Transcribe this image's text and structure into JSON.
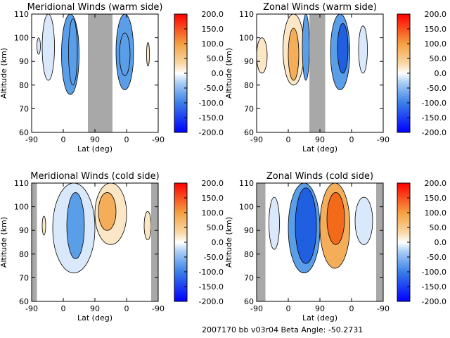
{
  "footer": "2007170 bb v03r04   Beta Angle: -50.2731",
  "colorbar_ticks": [
    "200.0",
    "150.0",
    "100.0",
    "50.0",
    "0.0",
    "-50.0",
    "-100.0",
    "-150.0",
    "-200.0"
  ],
  "colors": {
    "gray_band": "#a8a8a8",
    "negative_light": "#d9e9fb",
    "negative_mid": "#5a9ee8",
    "negative_strong": "#1f5fe0",
    "positive_light": "#fbe6c6",
    "positive_mid": "#f4ae5a",
    "positive_strong": "#f26a1a"
  },
  "chart_data": [
    {
      "type": "heatmap",
      "title": "Meridional Winds (warm side)",
      "xlabel": "Lat (deg)",
      "ylabel": "Altitude (km)",
      "xticks": [
        "-90",
        "0",
        "90",
        "0",
        "-90"
      ],
      "yticks": [
        "60",
        "70",
        "80",
        "90",
        "100",
        "110"
      ],
      "ylim": [
        60,
        110
      ],
      "colorbar_range": [
        -200,
        200
      ],
      "no_data_bands_deg": [
        [
          70,
          140
        ]
      ],
      "features": [
        {
          "x": [
            -60,
            -25
          ],
          "y": [
            82,
            110
          ],
          "level": -25
        },
        {
          "x": [
            -5,
            45
          ],
          "y": [
            76,
            110
          ],
          "level": -75
        },
        {
          "x": [
            15,
            40
          ],
          "y": [
            80,
            108
          ],
          "level": -120
        },
        {
          "x": [
            150,
            200
          ],
          "y": [
            78,
            110
          ],
          "level": -70
        },
        {
          "x": [
            160,
            190
          ],
          "y": [
            84,
            102
          ],
          "level": -120
        },
        {
          "x": [
            238,
            244
          ],
          "y": [
            88,
            98
          ],
          "level": 30
        },
        {
          "x": [
            -75,
            -65
          ],
          "y": [
            93,
            100
          ],
          "level": -30
        }
      ]
    },
    {
      "type": "heatmap",
      "title": "Zonal Winds (warm side)",
      "xlabel": "Lat (deg)",
      "ylabel": "Altitude (km)",
      "xticks": [
        "-90",
        "0",
        "90",
        "0",
        "-90"
      ],
      "yticks": [
        "60",
        "70",
        "80",
        "90",
        "100",
        "110"
      ],
      "ylim": [
        60,
        110
      ],
      "colorbar_range": [
        -200,
        200
      ],
      "no_data_bands_deg": [
        [
          60,
          105
        ]
      ],
      "features": [
        {
          "x": [
            -90,
            -60
          ],
          "y": [
            85,
            100
          ],
          "level": 30
        },
        {
          "x": [
            -15,
            45
          ],
          "y": [
            80,
            110
          ],
          "level": 40
        },
        {
          "x": [
            0,
            30
          ],
          "y": [
            82,
            104
          ],
          "level": 90
        },
        {
          "x": [
            40,
            60
          ],
          "y": [
            82,
            110
          ],
          "level": -80
        },
        {
          "x": [
            120,
            175
          ],
          "y": [
            78,
            110
          ],
          "level": -100
        },
        {
          "x": [
            140,
            170
          ],
          "y": [
            85,
            106
          ],
          "level": -140
        },
        {
          "x": [
            200,
            225
          ],
          "y": [
            85,
            105
          ],
          "level": -25
        }
      ]
    },
    {
      "type": "heatmap",
      "title": "Meridional Winds (cold side)",
      "xlabel": "Lat (deg)",
      "ylabel": "Altitude (km)",
      "xticks": [
        "-90",
        "0",
        "90",
        "0",
        "-90"
      ],
      "yticks": [
        "60",
        "70",
        "80",
        "90",
        "100",
        "110"
      ],
      "ylim": [
        60,
        110
      ],
      "colorbar_range": [
        -200,
        200
      ],
      "no_data_bands_deg": [
        [
          -90,
          -75
        ],
        [
          250,
          270
        ]
      ],
      "features": [
        {
          "x": [
            -30,
            90
          ],
          "y": [
            72,
            110
          ],
          "level": -40
        },
        {
          "x": [
            10,
            60
          ],
          "y": [
            78,
            106
          ],
          "level": -90
        },
        {
          "x": [
            90,
            180
          ],
          "y": [
            84,
            110
          ],
          "level": 40
        },
        {
          "x": [
            100,
            150
          ],
          "y": [
            90,
            106
          ],
          "level": 70
        },
        {
          "x": [
            -60,
            -50
          ],
          "y": [
            88,
            96
          ],
          "level": 25
        },
        {
          "x": [
            230,
            250
          ],
          "y": [
            86,
            98
          ],
          "level": 50
        }
      ]
    },
    {
      "type": "heatmap",
      "title": "Zonal Winds (cold side)",
      "xlabel": "Lat (deg)",
      "ylabel": "Altitude (km)",
      "xticks": [
        "-90",
        "0",
        "90",
        "0",
        "-90"
      ],
      "yticks": [
        "60",
        "70",
        "80",
        "90",
        "100",
        "110"
      ],
      "ylim": [
        60,
        110
      ],
      "colorbar_range": [
        -200,
        200
      ],
      "no_data_bands_deg": [
        [
          -90,
          -65
        ],
        [
          250,
          270
        ]
      ],
      "features": [
        {
          "x": [
            0,
            90
          ],
          "y": [
            72,
            110
          ],
          "level": -100
        },
        {
          "x": [
            20,
            80
          ],
          "y": [
            76,
            108
          ],
          "level": -160
        },
        {
          "x": [
            90,
            175
          ],
          "y": [
            74,
            110
          ],
          "level": 110
        },
        {
          "x": [
            110,
            160
          ],
          "y": [
            84,
            106
          ],
          "level": 180
        },
        {
          "x": [
            -55,
            -25
          ],
          "y": [
            82,
            104
          ],
          "level": -30
        },
        {
          "x": [
            190,
            240
          ],
          "y": [
            84,
            104
          ],
          "level": -25
        }
      ]
    }
  ]
}
